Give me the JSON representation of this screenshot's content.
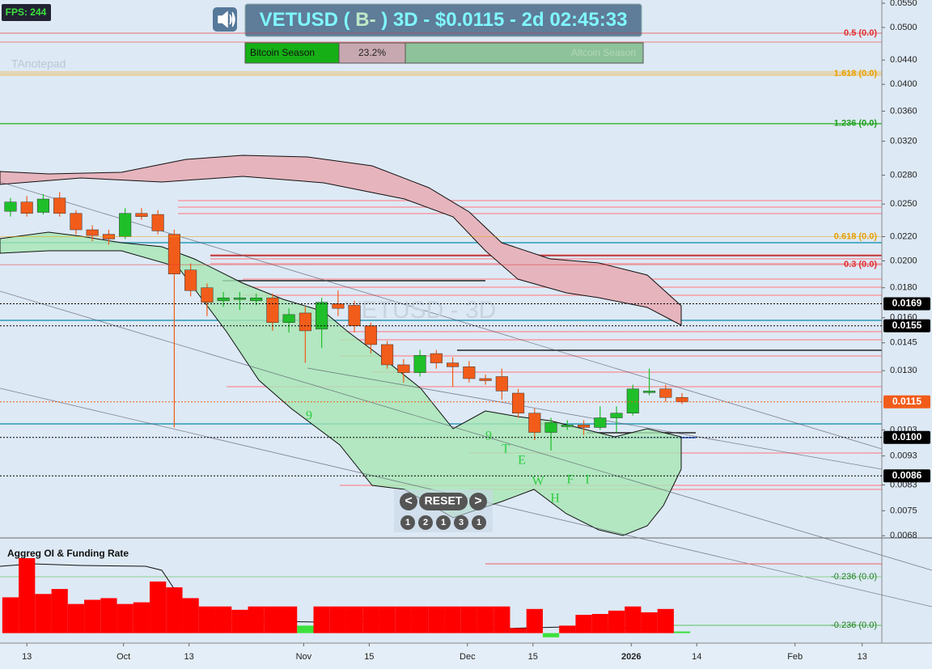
{
  "chart_data": {
    "type": "candlestick",
    "fps": "FPS: 244",
    "title_parts": [
      "VETUSD (",
      "B-",
      ") 3D - $0.0115 - 2d 02:45:33"
    ],
    "season": {
      "left": "Bitcoin Season",
      "value": "23.2%",
      "right": "Altcoin Season"
    },
    "note": "TAnotepad",
    "watermark": "VETUSD - 3D",
    "log_scale": true,
    "up_color": "#1fbf2a",
    "down_color": "#f25c1a",
    "open": [
      0.0243,
      0.0252,
      0.0242,
      0.0256,
      0.0241,
      0.0226,
      0.0222,
      0.022,
      0.0241,
      0.024,
      0.0222,
      0.0193,
      0.018,
      0.0171,
      0.0172,
      0.0171,
      0.0173,
      0.0157,
      0.0163,
      0.0153,
      0.0169,
      0.0168,
      0.0155,
      0.0144,
      0.0133,
      0.0129,
      0.0139,
      0.0134,
      0.0132,
      0.0126,
      0.0127,
      0.0119,
      0.011,
      0.0102,
      0.0105,
      0.0105,
      0.0104,
      0.0108,
      0.011,
      0.012,
      0.0121,
      0.0117
    ],
    "high": [
      0.0256,
      0.0258,
      0.026,
      0.0262,
      0.0244,
      0.023,
      0.0226,
      0.0246,
      0.0246,
      0.0244,
      0.0226,
      0.0198,
      0.0183,
      0.0177,
      0.0177,
      0.0176,
      0.0176,
      0.0166,
      0.0167,
      0.0173,
      0.0178,
      0.0171,
      0.0157,
      0.0146,
      0.0136,
      0.0141,
      0.0141,
      0.0137,
      0.0135,
      0.0128,
      0.0131,
      0.0121,
      0.0112,
      0.0108,
      0.0107,
      0.0107,
      0.0113,
      0.0113,
      0.0123,
      0.0131,
      0.0123,
      0.0119
    ],
    "low": [
      0.0238,
      0.0238,
      0.024,
      0.0238,
      0.0222,
      0.0216,
      0.0213,
      0.0218,
      0.0235,
      0.0222,
      0.0104,
      0.0174,
      0.0161,
      0.0167,
      0.0165,
      0.0168,
      0.0152,
      0.0151,
      0.0134,
      0.0142,
      0.0161,
      0.0151,
      0.0139,
      0.0131,
      0.0124,
      0.0127,
      0.0131,
      0.0122,
      0.0124,
      0.0123,
      0.0116,
      0.0108,
      0.0099,
      0.0095,
      0.0103,
      0.0101,
      0.0103,
      0.0102,
      0.0109,
      0.0118,
      0.0115,
      0.0114
    ],
    "close": [
      0.0252,
      0.0241,
      0.0255,
      0.0241,
      0.0226,
      0.0221,
      0.0218,
      0.0241,
      0.0238,
      0.0225,
      0.019,
      0.0178,
      0.017,
      0.0173,
      0.0173,
      0.0173,
      0.0157,
      0.0162,
      0.0152,
      0.017,
      0.0166,
      0.0155,
      0.0144,
      0.0133,
      0.0129,
      0.0138,
      0.0134,
      0.0132,
      0.0126,
      0.0125,
      0.012,
      0.011,
      0.0102,
      0.0106,
      0.0105,
      0.0104,
      0.0108,
      0.011,
      0.0121,
      0.012,
      0.0117,
      0.0115
    ],
    "xlim": [
      -0.64,
      53.2
    ],
    "xticks": [
      {
        "value": 1,
        "label": "13"
      },
      {
        "value": 6.9,
        "label": "Oct"
      },
      {
        "value": 10.9,
        "label": "13"
      },
      {
        "value": 17.9,
        "label": "Nov"
      },
      {
        "value": 21.9,
        "label": "15"
      },
      {
        "value": 27.9,
        "label": "Dec"
      },
      {
        "value": 31.9,
        "label": "15"
      },
      {
        "value": 37.9,
        "label": "2026"
      },
      {
        "value": 41.9,
        "label": "14"
      },
      {
        "value": 47.9,
        "label": "Feb"
      },
      {
        "value": 52,
        "label": "13"
      }
    ],
    "ylim": [
      0.00674,
      0.0557
    ],
    "yticks": [
      {
        "value": 0.055,
        "label": "0.0550"
      },
      {
        "value": 0.05,
        "label": "0.0500"
      },
      {
        "value": 0.044,
        "label": "0.0440"
      },
      {
        "value": 0.04,
        "label": "0.0400"
      },
      {
        "value": 0.036,
        "label": "0.0360"
      },
      {
        "value": 0.032,
        "label": "0.0320"
      },
      {
        "value": 0.028,
        "label": "0.0280"
      },
      {
        "value": 0.025,
        "label": "0.0250"
      },
      {
        "value": 0.022,
        "label": "0.0220"
      },
      {
        "value": 0.02,
        "label": "0.0200"
      },
      {
        "value": 0.018,
        "label": "0.0180"
      },
      {
        "value": 0.016,
        "label": "0.0160"
      },
      0.0145,
      {
        "value": 0.013,
        "label": "0.0130"
      },
      0.0103,
      0.0093,
      0.0083,
      0.0075,
      0.0068
    ],
    "price_labels": [
      {
        "value": 0.0169,
        "color": "#000000"
      },
      {
        "value": 0.0155,
        "color": "#000000"
      },
      {
        "value": 0.0115,
        "color": "#f25c1a"
      },
      {
        "value": 0.01,
        "label": "0.0100",
        "color": "#000000"
      },
      {
        "value": 0.0086,
        "color": "#000000"
      }
    ],
    "fib_levels": [
      {
        "value": 0.0489,
        "label": "0.5 (0.0)",
        "color": "#e03030"
      },
      {
        "value": 0.0417,
        "label": "1.618 (0.0)",
        "color": "#e8a000"
      },
      {
        "value": 0.0343,
        "label": "1.236 (0.0)",
        "color": "#20a020"
      },
      {
        "value": 0.022,
        "label": "0.618 (0.0)",
        "color": "#e8a000"
      },
      {
        "value": 0.0197,
        "label": "0.3 (0.0)",
        "color": "#e03030"
      }
    ],
    "td_labels": [
      "9",
      "9",
      "T",
      "E",
      "W",
      "H",
      "F",
      "I"
    ],
    "nav": {
      "prev": "<",
      "reset": "RESET",
      "next": ">",
      "counts": [
        "1",
        "2",
        "1",
        "3",
        "1"
      ]
    },
    "oi": {
      "title": "Aggreg OI & Funding Rate",
      "values": [
        43,
        90,
        47,
        53,
        35,
        40,
        42,
        35,
        37,
        62,
        55,
        42,
        32,
        32,
        28,
        32,
        32,
        32,
        9,
        32,
        32,
        32,
        32,
        32,
        32,
        32,
        32,
        32,
        32,
        32,
        32,
        6,
        29,
        -5,
        9,
        22,
        23,
        27,
        32,
        25,
        29,
        2
      ],
      "colors": [
        "#f00",
        "#f00",
        "#f00",
        "#f00",
        "#f00",
        "#f00",
        "#f00",
        "#f00",
        "#f00",
        "#f00",
        "#f00",
        "#f00",
        "#f00",
        "#f00",
        "#f00",
        "#f00",
        "#f00",
        "#f00",
        "#3de03d",
        "#f00",
        "#f00",
        "#f00",
        "#f00",
        "#f00",
        "#f00",
        "#f00",
        "#f00",
        "#f00",
        "#f00",
        "#f00",
        "#f00",
        "#f00",
        "#f00",
        "#3de03d",
        "#f00",
        "#f00",
        "#f00",
        "#f00",
        "#f00",
        "#f00",
        "#f00",
        "#3de03d"
      ],
      "ylim": [
        -12,
        107.5
      ],
      "levels": [
        "-0.236 (0.0)",
        "-0.236 (0.0)"
      ]
    }
  }
}
